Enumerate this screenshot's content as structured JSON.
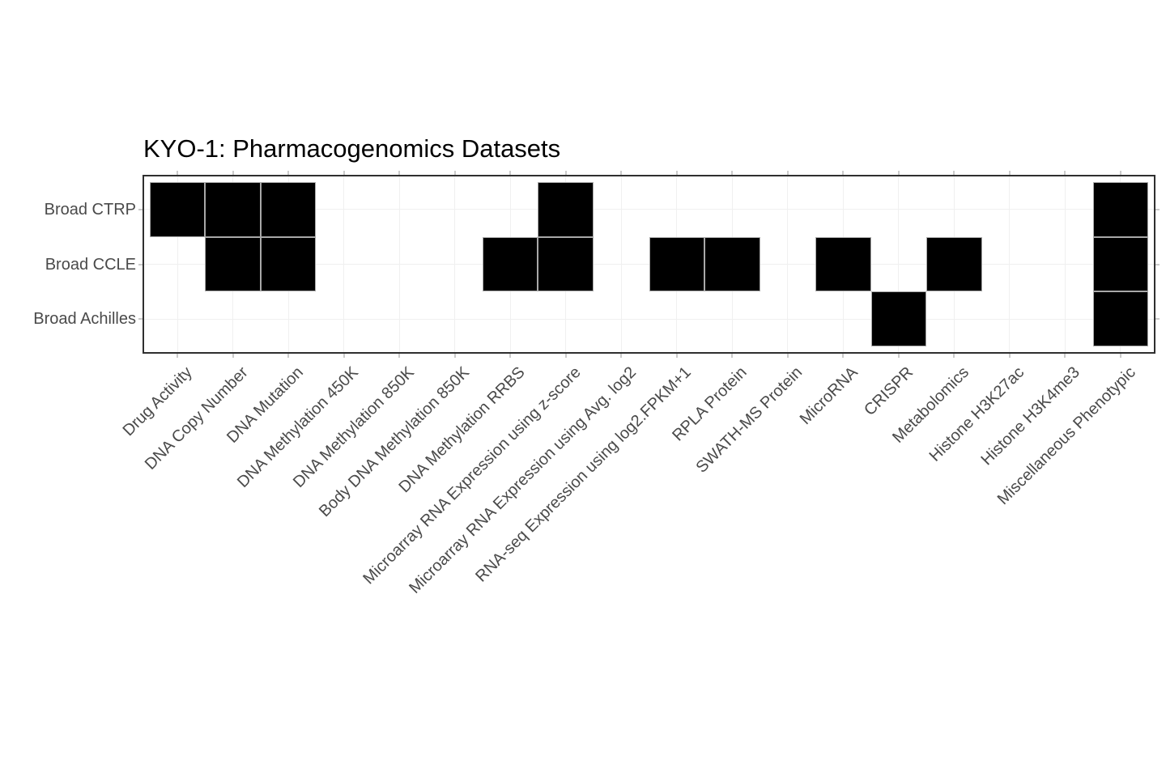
{
  "page": {
    "background_color": "#ffffff"
  },
  "chart_data": {
    "type": "heatmap",
    "title": "KYO-1: Pharmacogenomics Datasets",
    "legend": "none",
    "grid": "faint",
    "rows": [
      "Broad CTRP",
      "Broad CCLE",
      "Broad Achilles"
    ],
    "columns": [
      "Drug Activity",
      "DNA Copy Number",
      "DNA Mutation",
      "DNA Methylation 450K",
      "DNA Methylation 850K",
      "Body DNA Methylation 850K",
      "DNA Methylation RRBS",
      "Microarray RNA Expression using z-score",
      "Microarray RNA Expression using Avg. log2",
      "RNA-seq Expression using log2.FPKM+1",
      "RPLA Protein",
      "SWATH-MS Protein",
      "MicroRNA",
      "CRISPR",
      "Metabolomics",
      "Histone H3K27ac",
      "Histone H3K4me3",
      "Miscellaneous Phenotypic"
    ],
    "matrix": [
      [
        1,
        1,
        1,
        0,
        0,
        0,
        0,
        1,
        0,
        0,
        0,
        0,
        0,
        0,
        0,
        0,
        0,
        1
      ],
      [
        0,
        1,
        1,
        0,
        0,
        0,
        1,
        1,
        0,
        1,
        1,
        0,
        1,
        0,
        1,
        0,
        0,
        1
      ],
      [
        0,
        0,
        0,
        0,
        0,
        0,
        0,
        0,
        0,
        0,
        0,
        0,
        0,
        1,
        0,
        0,
        0,
        1
      ]
    ],
    "colors": {
      "cell_fill": "#000000",
      "cell_border": "#a8a8a8",
      "panel_border": "#2f2f2f",
      "panel_background": "#ffffff",
      "axis_text": "#4a4a4a",
      "title_text": "#000000",
      "tick": "#cbcbcb",
      "gridline": "#f0f0f0"
    }
  }
}
